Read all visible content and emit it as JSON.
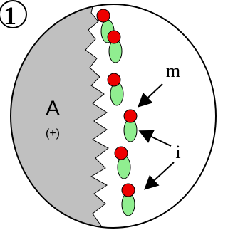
{
  "panel_number": "1",
  "region": {
    "label": "A",
    "charge": "(+)"
  },
  "annotations": [
    {
      "label": "m"
    },
    {
      "label": "i"
    }
  ]
}
